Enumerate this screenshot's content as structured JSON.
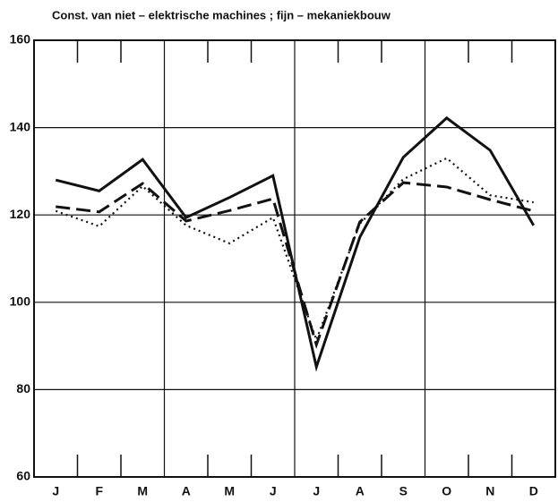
{
  "chart_data": {
    "type": "line",
    "title": "Const. van niet – elektrische machines ; fijn – mekaniekbouw",
    "categories": [
      "J",
      "F",
      "M",
      "A",
      "M",
      "J",
      "J",
      "A",
      "S",
      "O",
      "N",
      "D"
    ],
    "series": [
      {
        "color": "#111111",
        "dash": "solid",
        "values": [
          128,
          125.5,
          132.7,
          119.4,
          124,
          129,
          85.2,
          114.9,
          133.2,
          142.2,
          134.8,
          117.6
        ]
      },
      {
        "color": "#111111",
        "dash": "dashed",
        "values": [
          121.9,
          120.7,
          127.2,
          118.6,
          121,
          123.7,
          90.3,
          118.4,
          127.4,
          126.4,
          123.5,
          120.9
        ]
      },
      {
        "color": "#111111",
        "dash": "dotted",
        "values": [
          120.9,
          117.4,
          126.6,
          117.6,
          113.5,
          119.4,
          91.4,
          118,
          128.2,
          133,
          124.5,
          122.9
        ]
      }
    ],
    "ylim": [
      60,
      160
    ],
    "yticks": [
      60,
      80,
      100,
      120,
      140,
      160
    ],
    "grid": true
  }
}
